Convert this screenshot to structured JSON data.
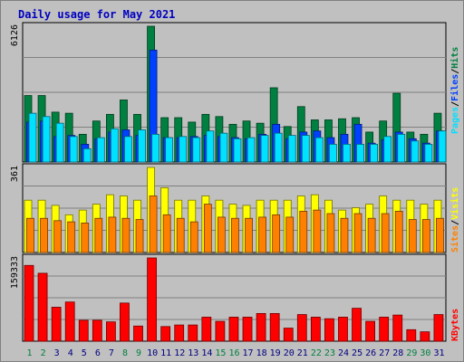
{
  "title": "Daily usage for May 2021",
  "colors": {
    "background": "#c0c0c0",
    "title": "#0000c0",
    "hits": "#008040",
    "files": "#0040ff",
    "pages": "#00e0ff",
    "visits": "#ffff00",
    "sites": "#ff8000",
    "kbytes": "#ff0000",
    "weekday_label": "#000080",
    "weekend_label": "#008040"
  },
  "chart_data": [
    {
      "type": "bar",
      "panel": "top",
      "max_label": "6126",
      "legend": [
        "Pages",
        "Files",
        "Hits"
      ],
      "categories": [
        "1",
        "2",
        "3",
        "4",
        "5",
        "6",
        "7",
        "8",
        "9",
        "10",
        "11",
        "12",
        "13",
        "14",
        "15",
        "16",
        "17",
        "18",
        "19",
        "20",
        "21",
        "22",
        "23",
        "24",
        "25",
        "26",
        "27",
        "28",
        "29",
        "30",
        "31"
      ],
      "series": [
        {
          "name": "Hits",
          "values": [
            3000,
            3000,
            2250,
            2200,
            1250,
            1850,
            2150,
            2800,
            2150,
            6126,
            2000,
            2000,
            1800,
            2150,
            2050,
            1700,
            1850,
            1750,
            3350,
            1600,
            2500,
            1900,
            1900,
            1950,
            2000,
            1350,
            1850,
            3100,
            1350,
            1250,
            2200
          ]
        },
        {
          "name": "Files",
          "values": [
            1800,
            1850,
            1150,
            1200,
            800,
            1050,
            1350,
            1450,
            1200,
            5050,
            1100,
            1100,
            1150,
            1200,
            1150,
            1100,
            1050,
            1250,
            1700,
            1050,
            1350,
            1400,
            1100,
            1250,
            1700,
            850,
            1000,
            1350,
            1050,
            850,
            1400
          ]
        },
        {
          "name": "Pages",
          "values": [
            2200,
            2050,
            1750,
            1150,
            600,
            1100,
            1500,
            1150,
            1450,
            1250,
            1100,
            1150,
            1100,
            1400,
            1300,
            1050,
            1100,
            1200,
            1300,
            1200,
            1200,
            1100,
            800,
            800,
            800,
            800,
            1150,
            1250,
            950,
            800,
            1400
          ]
        }
      ]
    },
    {
      "type": "bar",
      "panel": "middle",
      "max_label": "361",
      "legend": [
        "Sites",
        "Visits"
      ],
      "categories": [
        "1",
        "2",
        "3",
        "4",
        "5",
        "6",
        "7",
        "8",
        "9",
        "10",
        "11",
        "12",
        "13",
        "14",
        "15",
        "16",
        "17",
        "18",
        "19",
        "20",
        "21",
        "22",
        "23",
        "24",
        "25",
        "26",
        "27",
        "28",
        "29",
        "30",
        "31"
      ],
      "series": [
        {
          "name": "Visits",
          "values": [
            222,
            222,
            200,
            160,
            180,
            205,
            245,
            240,
            222,
            361,
            275,
            222,
            222,
            240,
            222,
            205,
            200,
            222,
            222,
            222,
            240,
            245,
            222,
            180,
            190,
            205,
            240,
            222,
            222,
            205,
            222
          ]
        },
        {
          "name": "Sites",
          "values": [
            145,
            145,
            135,
            130,
            125,
            145,
            150,
            145,
            140,
            240,
            160,
            145,
            130,
            205,
            150,
            145,
            145,
            150,
            160,
            150,
            175,
            180,
            165,
            145,
            165,
            145,
            165,
            175,
            140,
            140,
            145
          ]
        }
      ]
    },
    {
      "type": "bar",
      "panel": "bottom",
      "max_label": "159333",
      "legend": [
        "KBytes"
      ],
      "categories": [
        "1",
        "2",
        "3",
        "4",
        "5",
        "6",
        "7",
        "8",
        "9",
        "10",
        "11",
        "12",
        "13",
        "14",
        "15",
        "16",
        "17",
        "18",
        "19",
        "20",
        "21",
        "22",
        "23",
        "24",
        "25",
        "26",
        "27",
        "28",
        "29",
        "30",
        "31"
      ],
      "series": [
        {
          "name": "KBytes",
          "values": [
            145000,
            130000,
            65000,
            75000,
            40000,
            40000,
            37000,
            73000,
            29000,
            159333,
            28000,
            31000,
            31000,
            46000,
            38000,
            46000,
            46000,
            53000,
            53000,
            25000,
            51000,
            46000,
            43000,
            46000,
            63000,
            38000,
            46000,
            50000,
            22000,
            18000,
            51000
          ]
        }
      ]
    }
  ],
  "weekend_days": [
    "1",
    "2",
    "8",
    "9",
    "15",
    "16",
    "22",
    "23",
    "29",
    "30"
  ]
}
